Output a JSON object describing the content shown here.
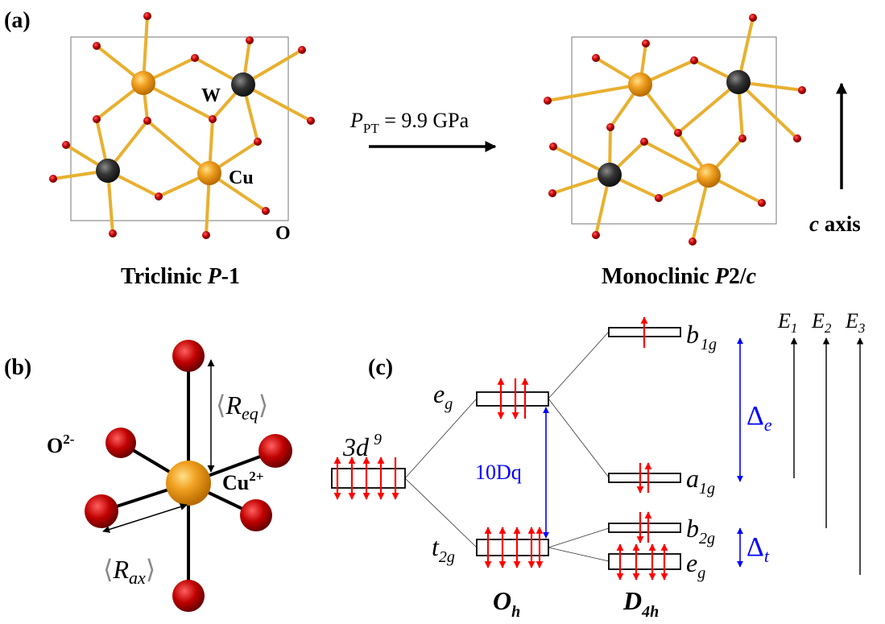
{
  "panel_a": {
    "label": "(a)",
    "atom_W": "W",
    "atom_Cu": "Cu",
    "atom_O": "O",
    "left_title_prefix": "Triclinic ",
    "left_title_italic": "P",
    "left_title_suffix": "-1",
    "right_title_prefix": "Monoclinic ",
    "right_title_italic": "P",
    "right_title_mid": "2/",
    "right_title_italic2": "c",
    "pressure_symbol": "P",
    "pressure_sub": "PT",
    "pressure_value": " = 9.9 GPa",
    "axis_italic": "c",
    "axis_label": " axis"
  },
  "panel_b": {
    "label": "(b)",
    "oxygen": "O",
    "oxygen_charge": "2-",
    "copper": "Cu",
    "copper_charge": "2+",
    "r_eq_symbol": "R",
    "r_eq_sub": "eq",
    "r_ax_symbol": "R",
    "r_ax_sub": "ax",
    "left_bracket": "⟨",
    "right_bracket": "⟩"
  },
  "panel_c": {
    "label": "(c)",
    "config": "3d",
    "config_sup": "9",
    "eg_main": "e",
    "eg_sub": "g",
    "t2g_main": "t",
    "t2g_sub": "2g",
    "b1g_main": "b",
    "b1g_sub": "1g",
    "a1g_main": "a",
    "a1g_sub": "1g",
    "b2g_main": "b",
    "b2g_sub": "2g",
    "eg2_main": "e",
    "eg2_sub": "g",
    "tenDq": "10Dq",
    "delta_e": "Δ",
    "delta_e_sub": "e",
    "delta_t": "Δ",
    "delta_t_sub": "t",
    "oh_main": "O",
    "oh_sub": "h",
    "d4h_main": "D",
    "d4h_sub": "4h",
    "e1": "E",
    "e1_sub": "1",
    "e2": "E",
    "e2_sub": "2",
    "e3": "E",
    "e3_sub": "3"
  },
  "colors": {
    "copper": "#f0a020",
    "tungsten": "#2a2a2a",
    "oxygen": "#b00000",
    "bond": "#e8b030",
    "arrow_red": "#ff0000",
    "annotation_blue": "#0000ff"
  }
}
